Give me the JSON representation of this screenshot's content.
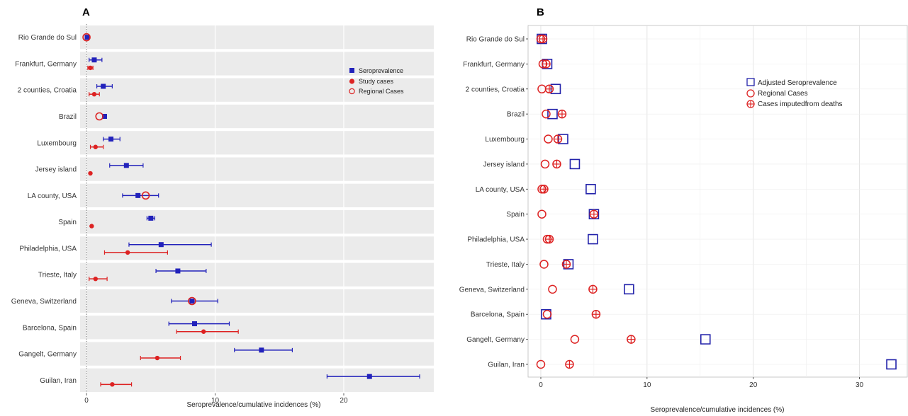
{
  "chart_data": [
    {
      "type": "scatter",
      "panel": "A",
      "xlabel": "Seroprevalence/cumulative incidences (%)",
      "xlim": [
        -0.5,
        27
      ],
      "xticks": [
        0,
        10,
        20
      ],
      "grid": true,
      "legend_position": "top-right",
      "legend": [
        "Seroprevalence",
        "Study cases",
        "Regional Cases"
      ],
      "colors": {
        "sero": "#2222bb",
        "study": "#dd2222",
        "regional": "#dd2222"
      },
      "categories": [
        "Rio Grande do Sul",
        "Frankfurt, Germany",
        "2 counties, Croatia",
        "Brazil",
        "Luxembourg",
        "Jersey island",
        "LA county, USA",
        "Spain",
        "Philadelphia, USA",
        "Trieste, Italy",
        "Geneva, Switzerland",
        "Barcelona, Spain",
        "Gangelt, Germany",
        "Guilan, Iran"
      ],
      "seroprevalence": [
        {
          "v": 0.05,
          "lo": 0.0,
          "hi": 0.1
        },
        {
          "v": 0.6,
          "lo": 0.2,
          "hi": 1.2
        },
        {
          "v": 1.3,
          "lo": 0.8,
          "hi": 2.0
        },
        {
          "v": 1.4,
          "lo": 1.3,
          "hi": 1.5
        },
        {
          "v": 1.9,
          "lo": 1.3,
          "hi": 2.6
        },
        {
          "v": 3.1,
          "lo": 1.8,
          "hi": 4.4
        },
        {
          "v": 4.0,
          "lo": 2.8,
          "hi": 5.6
        },
        {
          "v": 5.0,
          "lo": 4.7,
          "hi": 5.3
        },
        {
          "v": 5.8,
          "lo": 3.3,
          "hi": 9.7
        },
        {
          "v": 7.1,
          "lo": 5.4,
          "hi": 9.3
        },
        {
          "v": 8.2,
          "lo": 6.6,
          "hi": 10.2
        },
        {
          "v": 8.4,
          "lo": 6.4,
          "hi": 11.1
        },
        {
          "v": 13.6,
          "lo": 11.5,
          "hi": 16.0
        },
        {
          "v": 22.0,
          "lo": 18.7,
          "hi": 25.9
        }
      ],
      "study_cases": [
        {
          "v": null
        },
        {
          "v": 0.3,
          "lo": 0.1,
          "hi": 0.5
        },
        {
          "v": 0.6,
          "lo": 0.2,
          "hi": 1.0
        },
        {
          "v": null
        },
        {
          "v": 0.7,
          "lo": 0.3,
          "hi": 1.3
        },
        {
          "v": 0.3
        },
        {
          "v": null
        },
        {
          "v": 0.4
        },
        {
          "v": 3.2,
          "lo": 1.4,
          "hi": 6.3
        },
        {
          "v": 0.7,
          "lo": 0.2,
          "hi": 1.6
        },
        {
          "v": null
        },
        {
          "v": 9.1,
          "lo": 7.0,
          "hi": 11.8
        },
        {
          "v": 5.5,
          "lo": 4.2,
          "hi": 7.3
        },
        {
          "v": 2.0,
          "lo": 1.1,
          "hi": 3.5
        }
      ],
      "regional_cases": [
        0.0,
        null,
        null,
        1.0,
        null,
        null,
        4.6,
        null,
        null,
        null,
        8.2,
        null,
        null,
        null
      ]
    },
    {
      "type": "scatter",
      "panel": "B",
      "xlabel": "Seroprevalence/cumulative incidences (%)",
      "xlim": [
        -1.2,
        34.5
      ],
      "xticks": [
        0,
        10,
        20,
        30
      ],
      "grid": true,
      "legend_position": "top-right",
      "legend": [
        "Adjusted Seroprevalence",
        "Regional Cases",
        "Cases imputedfrom deaths"
      ],
      "colors": {
        "adjusted": "#2222aa",
        "regional": "#dd2222",
        "imputed": "#dd2222"
      },
      "categories": [
        "Rio Grande do Sul",
        "Frankfurt, Germany",
        "2 counties, Croatia",
        "Brazil",
        "Luxembourg",
        "Jersey island",
        "LA county, USA",
        "Spain",
        "Philadelphia, USA",
        "Trieste, Italy",
        "Geneva, Switzerland",
        "Barcelona, Spain",
        "Gangelt, Germany",
        "Guilan, Iran"
      ],
      "adjusted_seroprevalence": [
        0.1,
        0.6,
        1.4,
        1.1,
        2.1,
        3.2,
        4.7,
        5.0,
        4.9,
        2.6,
        8.3,
        0.5,
        15.5,
        33.0
      ],
      "regional_cases": [
        0.0,
        0.2,
        0.1,
        0.5,
        0.7,
        0.4,
        0.1,
        0.1,
        0.6,
        0.3,
        1.1,
        0.6,
        3.2,
        0.0
      ],
      "imputed_from_deaths": [
        0.2,
        0.5,
        0.8,
        2.0,
        1.6,
        1.5,
        0.3,
        5.0,
        0.8,
        2.4,
        4.9,
        5.2,
        8.5,
        2.7
      ]
    }
  ],
  "panels": {
    "a_letter": "A",
    "b_letter": "B"
  }
}
